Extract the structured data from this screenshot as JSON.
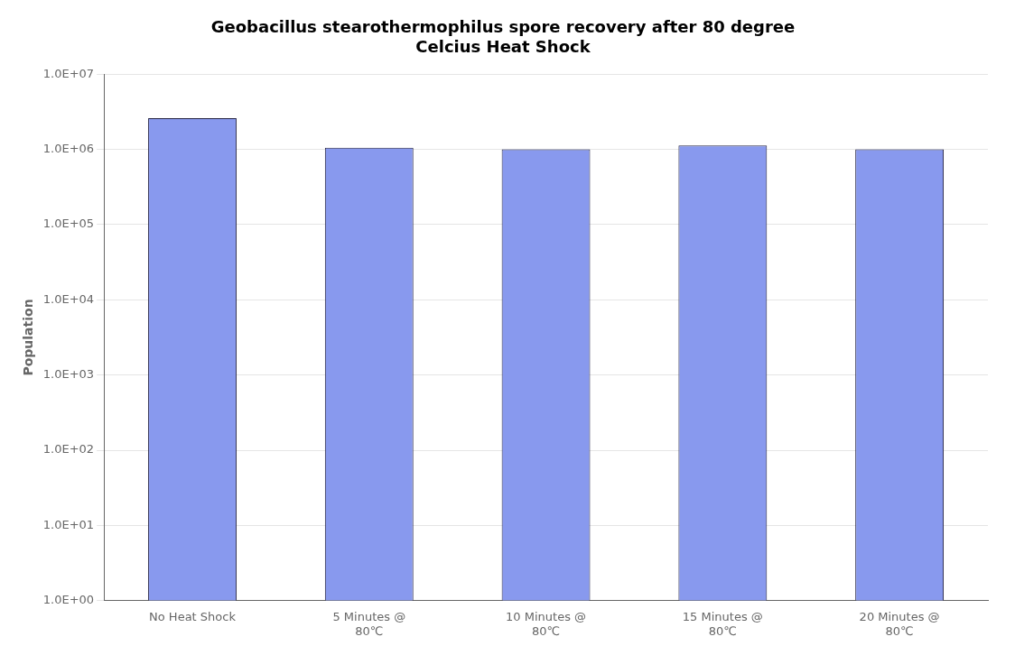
{
  "chart_data": {
    "type": "bar",
    "title": [
      "Geobacillus stearothermophilus spore recovery after 80 degree",
      "Celcius Heat Shock"
    ],
    "y_label": "Population",
    "categories": [
      "No Heat Shock",
      "5 Minutes @\n80℃",
      "10 Minutes @\n80℃",
      "15 Minutes @\n80℃",
      "20 Minutes @\n80℃"
    ],
    "values": [
      2600000,
      1050000,
      1000000,
      1130000,
      1000000
    ],
    "color": "#8899ee",
    "log": "y",
    "ylim": [
      1.0,
      10000000
    ],
    "yticks": [
      {
        "value": 1,
        "label": "1.0E+00"
      },
      {
        "value": 10,
        "label": "1.0E+01"
      },
      {
        "value": 100,
        "label": "1.0E+02"
      },
      {
        "value": 1000,
        "label": "1.0E+03"
      },
      {
        "value": 10000,
        "label": "1.0E+04"
      },
      {
        "value": 100000,
        "label": "1.0E+05"
      },
      {
        "value": 1000000,
        "label": "1.0E+06"
      },
      {
        "value": 10000000,
        "label": "1.0E+07"
      }
    ],
    "grid": true
  }
}
